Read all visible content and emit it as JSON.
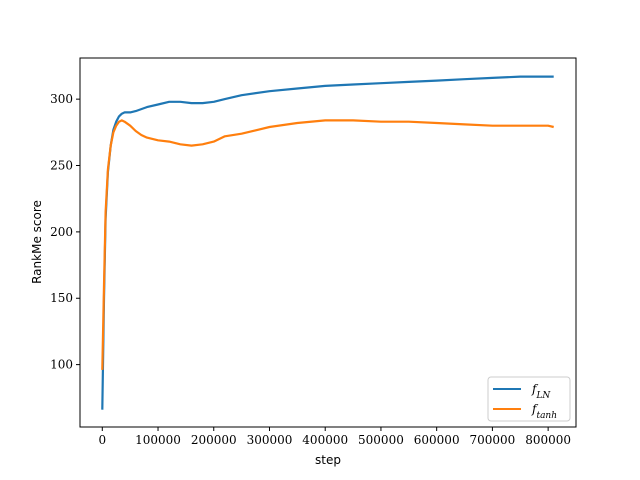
{
  "chart_data": {
    "type": "line",
    "title": "",
    "xlabel": "step",
    "ylabel": "RankMe score",
    "xlim": [
      -40000,
      850000
    ],
    "ylim": [
      53,
      331
    ],
    "xticks": [
      0,
      100000,
      200000,
      300000,
      400000,
      500000,
      600000,
      700000,
      800000
    ],
    "xtick_labels": [
      "0",
      "100000",
      "200000",
      "300000",
      "400000",
      "500000",
      "600000",
      "700000",
      "800000"
    ],
    "yticks": [
      100,
      150,
      200,
      250,
      300
    ],
    "ytick_labels": [
      "100",
      "150",
      "200",
      "250",
      "300"
    ],
    "grid": false,
    "legend_position": "lower-right",
    "series": [
      {
        "name": "f_LN",
        "legend_base": "f",
        "legend_sub": "LN",
        "color": "#1f77b4",
        "x": [
          0,
          3000,
          6000,
          10000,
          15000,
          20000,
          25000,
          30000,
          35000,
          40000,
          50000,
          60000,
          80000,
          100000,
          120000,
          140000,
          160000,
          180000,
          200000,
          220000,
          250000,
          300000,
          350000,
          400000,
          450000,
          500000,
          550000,
          600000,
          650000,
          700000,
          750000,
          800000,
          810000
        ],
        "y": [
          66,
          150,
          210,
          245,
          265,
          277,
          283,
          287,
          289,
          290,
          290,
          291,
          294,
          296,
          298,
          298,
          297,
          297,
          298,
          300,
          303,
          306,
          308,
          310,
          311,
          312,
          313,
          314,
          315,
          316,
          317,
          317,
          317
        ]
      },
      {
        "name": "f_tanh",
        "legend_base": "f",
        "legend_sub": "tanh",
        "color": "#ff7f0e",
        "x": [
          0,
          3000,
          6000,
          10000,
          15000,
          20000,
          25000,
          30000,
          35000,
          40000,
          50000,
          60000,
          70000,
          80000,
          100000,
          120000,
          140000,
          160000,
          180000,
          200000,
          220000,
          250000,
          300000,
          350000,
          400000,
          450000,
          500000,
          550000,
          600000,
          650000,
          700000,
          750000,
          800000,
          810000
        ],
        "y": [
          96,
          160,
          215,
          247,
          265,
          275,
          280,
          283,
          284,
          283,
          280,
          276,
          273,
          271,
          269,
          268,
          266,
          265,
          266,
          268,
          272,
          274,
          279,
          282,
          284,
          284,
          283,
          283,
          282,
          281,
          280,
          280,
          280,
          279
        ]
      }
    ]
  }
}
